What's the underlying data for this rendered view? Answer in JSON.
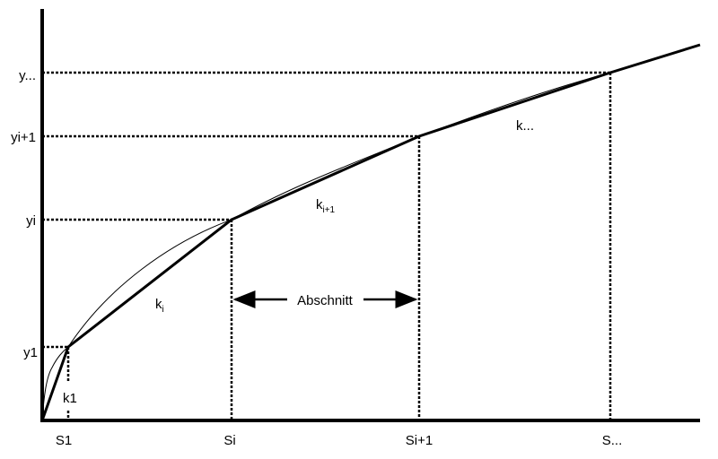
{
  "diagram": {
    "y_labels": [
      "y...",
      "yi+1",
      "yi",
      "y1"
    ],
    "x_labels": [
      "S1",
      "Si",
      "Si+1",
      "S..."
    ],
    "segment_labels": {
      "k1": "k1",
      "ki_base": "k",
      "ki_sub": "i",
      "ki1_base": "k",
      "ki1_sub": "i+1",
      "kdots": "k..."
    },
    "interval_label": "Abschnitt",
    "colors": {
      "line": "#000000",
      "background": "#ffffff"
    }
  }
}
